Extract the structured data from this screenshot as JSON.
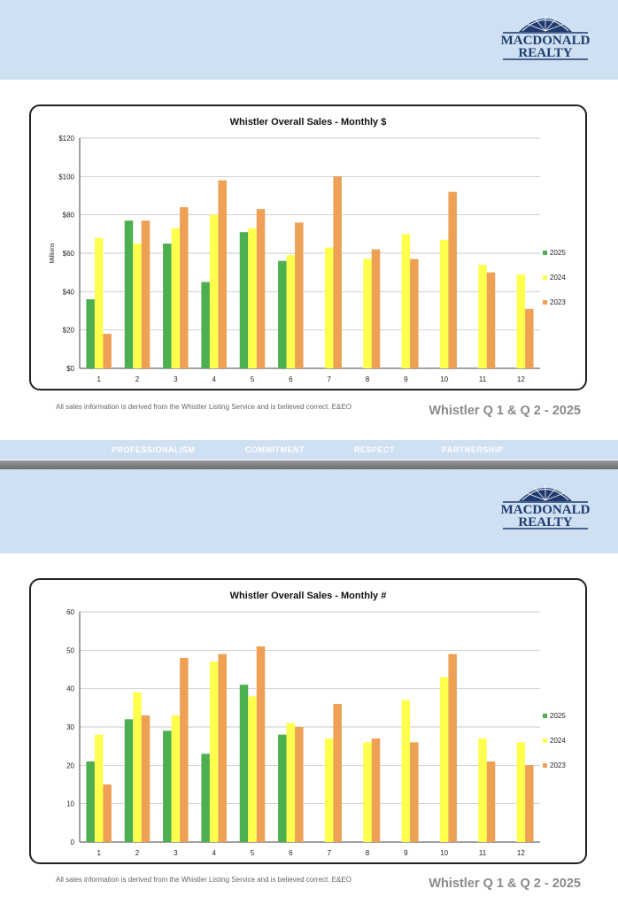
{
  "brand": {
    "logo_line1": "MACDONALD",
    "logo_line2": "REALTY",
    "navy": "#1f3a6e",
    "band_color": "#cfe0f2"
  },
  "disclaimer": "All sales information is derived from the Whistler Listing Service and is believed correct. E&EO",
  "report_title": "Whistler Q 1 & Q 2 - 2025",
  "footer_values": [
    "PROFESSIONALISM",
    "COMMITMENT",
    "RESPECT",
    "PARTNERSHIP"
  ],
  "chart_data": [
    {
      "type": "bar",
      "title": "Whistler Overall Sales - Monthly $",
      "ylabel": "Millions",
      "xlabel": "",
      "categories": [
        "1",
        "2",
        "3",
        "4",
        "5",
        "6",
        "7",
        "8",
        "9",
        "10",
        "11",
        "12"
      ],
      "ylim": [
        0,
        120
      ],
      "yticks": [
        "$0",
        "$20",
        "$40",
        "$60",
        "$80",
        "$100",
        "$120"
      ],
      "ytick_values": [
        0,
        20,
        40,
        60,
        80,
        100,
        120
      ],
      "grid": true,
      "legend": "right",
      "series": [
        {
          "name": "2025",
          "color": "#4caf50",
          "values": [
            36,
            77,
            65,
            45,
            71,
            56,
            null,
            null,
            null,
            null,
            null,
            null
          ]
        },
        {
          "name": "2024",
          "color": "#ffff4d",
          "values": [
            68,
            65,
            73,
            80,
            73,
            59,
            63,
            57,
            70,
            67,
            54,
            49
          ]
        },
        {
          "name": "2023",
          "color": "#eea055",
          "values": [
            18,
            77,
            84,
            98,
            83,
            76,
            100,
            62,
            57,
            92,
            50,
            31
          ]
        }
      ]
    },
    {
      "type": "bar",
      "title": "Whistler Overall Sales - Monthly #",
      "ylabel": "",
      "xlabel": "",
      "categories": [
        "1",
        "2",
        "3",
        "4",
        "5",
        "6",
        "7",
        "8",
        "9",
        "10",
        "11",
        "12"
      ],
      "ylim": [
        0,
        60
      ],
      "yticks": [
        "0",
        "10",
        "20",
        "30",
        "40",
        "50",
        "60"
      ],
      "ytick_values": [
        0,
        10,
        20,
        30,
        40,
        50,
        60
      ],
      "grid": true,
      "legend": "right",
      "series": [
        {
          "name": "2025",
          "color": "#4caf50",
          "values": [
            21,
            32,
            29,
            23,
            41,
            28,
            null,
            null,
            null,
            null,
            null,
            null
          ]
        },
        {
          "name": "2024",
          "color": "#ffff4d",
          "values": [
            28,
            39,
            33,
            47,
            38,
            31,
            27,
            26,
            37,
            43,
            27,
            26
          ]
        },
        {
          "name": "2023",
          "color": "#eea055",
          "values": [
            15,
            33,
            48,
            49,
            51,
            30,
            36,
            27,
            26,
            49,
            21,
            20
          ]
        }
      ]
    }
  ]
}
